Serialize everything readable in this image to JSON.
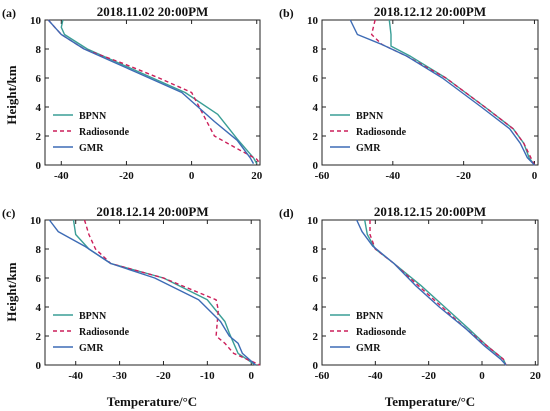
{
  "figure": {
    "ylabel": "Height/km",
    "xlabel": "Temperature/°C"
  },
  "chart_data": [
    {
      "type": "line",
      "panel_label": "(a)",
      "title": "2018.11.02 20:00PM",
      "xlim": [
        -45,
        21
      ],
      "ylim": [
        0,
        10
      ],
      "xticks": [
        -40,
        -20,
        0,
        20
      ],
      "yticks": [
        0,
        2,
        4,
        6,
        8,
        10
      ],
      "legend": "bottom-left",
      "colors": {
        "BPNN": "#3a9e96",
        "Radiosonde": "#cc1f5a",
        "GMR": "#3d6bb5"
      },
      "series": [
        {
          "name": "BPNN",
          "x": [
            -39.5,
            -40,
            -39,
            -32,
            -22,
            -12,
            -2,
            8,
            14,
            19,
            20
          ],
          "y": [
            10,
            9.5,
            9,
            8,
            7,
            6,
            5,
            3.5,
            1.8,
            0.5,
            0.1
          ]
        },
        {
          "name": "Radiosonde",
          "x": [
            -44,
            -42,
            -40,
            -33,
            -21,
            -10,
            0,
            7,
            15,
            20,
            21
          ],
          "y": [
            10,
            9.5,
            9,
            8,
            7,
            6,
            5,
            2,
            1,
            0.4,
            0.1
          ]
        },
        {
          "name": "GMR",
          "x": [
            -44,
            -42,
            -40,
            -33,
            -23,
            -13,
            -3,
            7,
            14,
            18,
            19
          ],
          "y": [
            10,
            9.5,
            9,
            8,
            7,
            6,
            5,
            3,
            1.7,
            0.5,
            0.1
          ]
        }
      ]
    },
    {
      "type": "line",
      "panel_label": "(b)",
      "title": "2018.12.12 20:00PM",
      "xlim": [
        -60,
        1
      ],
      "ylim": [
        0,
        10
      ],
      "xticks": [
        -60,
        -40,
        -20,
        0
      ],
      "yticks": [
        0,
        2,
        4,
        6,
        8,
        10
      ],
      "legend": "bottom-left",
      "colors": {
        "BPNN": "#3a9e96",
        "Radiosonde": "#cc1f5a",
        "GMR": "#3d6bb5"
      },
      "series": [
        {
          "name": "BPNN",
          "x": [
            -41,
            -40.5,
            -40.5,
            -35,
            -25,
            -14,
            -6,
            -3,
            -1.5,
            0
          ],
          "y": [
            10,
            9,
            8.2,
            7.5,
            6,
            4,
            2.5,
            1.5,
            0.5,
            0
          ]
        },
        {
          "name": "Radiosonde",
          "x": [
            -45,
            -46,
            -43,
            -36,
            -25,
            -14,
            -6,
            -3,
            -1,
            0
          ],
          "y": [
            10,
            9,
            8.3,
            7.5,
            6,
            4,
            2.5,
            1.5,
            0.5,
            0
          ]
        },
        {
          "name": "GMR",
          "x": [
            -52,
            -50,
            -43,
            -36,
            -26,
            -15,
            -7,
            -4,
            -2,
            0
          ],
          "y": [
            10,
            9,
            8.3,
            7.5,
            6,
            4,
            2.5,
            1.5,
            0.5,
            0
          ]
        }
      ]
    },
    {
      "type": "line",
      "panel_label": "(c)",
      "title": "2018.12.14 20:00PM",
      "xlim": [
        -47,
        2
      ],
      "ylim": [
        0,
        10
      ],
      "xticks": [
        -40,
        -30,
        -20,
        -10,
        0
      ],
      "yticks": [
        0,
        2,
        4,
        6,
        8,
        10
      ],
      "legend": "bottom-left",
      "colors": {
        "BPNN": "#3a9e96",
        "Radiosonde": "#cc1f5a",
        "GMR": "#3d6bb5"
      },
      "series": [
        {
          "name": "BPNN",
          "x": [
            -40.5,
            -40,
            -37,
            -32,
            -20,
            -10,
            -6,
            -5,
            -4,
            -3,
            1
          ],
          "y": [
            10,
            9,
            8,
            7,
            6,
            4.5,
            3,
            2.2,
            1.5,
            0.8,
            0
          ]
        },
        {
          "name": "Radiosonde",
          "x": [
            -38,
            -37,
            -35.5,
            -32,
            -20,
            -8,
            -7.5,
            -8,
            -6,
            -4,
            2
          ],
          "y": [
            10,
            9,
            8,
            7,
            6,
            4.5,
            3.8,
            2,
            1.5,
            0.8,
            0
          ]
        },
        {
          "name": "GMR",
          "x": [
            -46,
            -44,
            -38,
            -32,
            -22,
            -12,
            -7,
            -5,
            -3,
            -2,
            1
          ],
          "y": [
            10,
            9.2,
            8.2,
            7,
            6,
            4.5,
            3,
            2,
            1.5,
            0.8,
            0
          ]
        }
      ]
    },
    {
      "type": "line",
      "panel_label": "(d)",
      "title": "2018.12.15 20:00PM",
      "xlim": [
        -60,
        21
      ],
      "ylim": [
        0,
        10
      ],
      "xticks": [
        -60,
        -40,
        -20,
        0,
        20
      ],
      "yticks": [
        0,
        2,
        4,
        6,
        8,
        10
      ],
      "legend": "bottom-left",
      "colors": {
        "BPNN": "#3a9e96",
        "Radiosonde": "#cc1f5a",
        "GMR": "#3d6bb5"
      },
      "series": [
        {
          "name": "BPNN",
          "x": [
            -44,
            -43,
            -40,
            -33,
            -23,
            -14,
            -5,
            2,
            8,
            9
          ],
          "y": [
            10,
            9,
            8,
            7,
            5.5,
            4,
            2.5,
            1.3,
            0.4,
            0
          ]
        },
        {
          "name": "Radiosonde",
          "x": [
            -42,
            -42,
            -40,
            -33,
            -24,
            -15,
            -6,
            2,
            8,
            9
          ],
          "y": [
            10,
            9,
            8,
            7,
            5.5,
            4,
            2.5,
            1.3,
            0.4,
            0
          ]
        },
        {
          "name": "GMR",
          "x": [
            -47,
            -45,
            -41,
            -33,
            -25,
            -16,
            -6,
            1,
            7,
            9
          ],
          "y": [
            10,
            9.2,
            8.2,
            7,
            5.5,
            4,
            2.5,
            1.3,
            0.4,
            0
          ]
        }
      ]
    }
  ]
}
